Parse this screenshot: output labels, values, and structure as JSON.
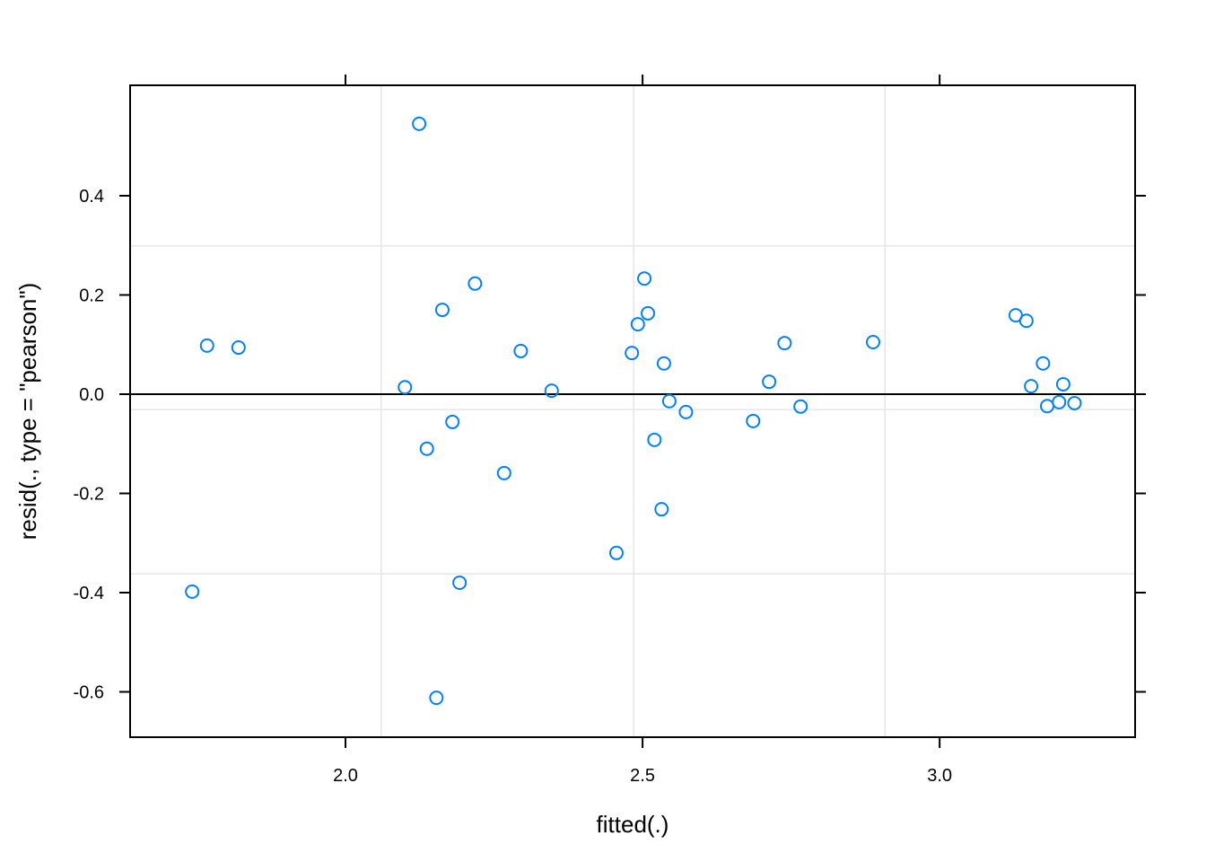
{
  "chart_data": {
    "type": "scatter",
    "x_label": "fitted(.)",
    "y_label": "resid(., type = \"pearson\")",
    "color": "#0080ff",
    "grid_color": "#e6e6e6",
    "reference_line": 0,
    "xgrid": [
      2.06,
      2.485,
      2.908
    ],
    "ygrid": [
      0.299,
      -0.031,
      -0.362
    ],
    "xlim": [
      1.6375,
      3.329
    ],
    "ylim": [
      -0.6914,
      0.6226
    ],
    "xticks": [
      {
        "value": 2.0,
        "label": "2.0"
      },
      2.5,
      {
        "value": 3.0,
        "label": "3.0"
      }
    ],
    "yticks": [
      -0.6,
      -0.4,
      -0.2,
      {
        "value": 0,
        "label": "0.0"
      },
      0.2,
      0.4
    ],
    "x": [
      2.124,
      1.767,
      1.82,
      1.742,
      2.1,
      2.163,
      2.218,
      2.295,
      2.347,
      2.18,
      2.137,
      2.267,
      2.192,
      2.153,
      2.503,
      2.509,
      2.492,
      2.482,
      2.536,
      2.545,
      2.573,
      2.52,
      2.532,
      2.456,
      2.686,
      2.713,
      2.739,
      2.766,
      2.888,
      3.128,
      3.146,
      3.174,
      3.154,
      3.208,
      3.181,
      3.201,
      3.227
    ],
    "values": [
      0.545,
      0.098,
      0.094,
      -0.398,
      0.014,
      0.17,
      0.223,
      0.087,
      0.007,
      -0.056,
      -0.11,
      -0.159,
      -0.38,
      -0.612,
      0.233,
      0.163,
      0.141,
      0.083,
      0.062,
      -0.014,
      -0.036,
      -0.092,
      -0.232,
      -0.32,
      -0.054,
      0.025,
      0.103,
      -0.025,
      0.105,
      0.159,
      0.148,
      0.062,
      0.016,
      0.02,
      -0.024,
      -0.016,
      -0.018
    ]
  }
}
